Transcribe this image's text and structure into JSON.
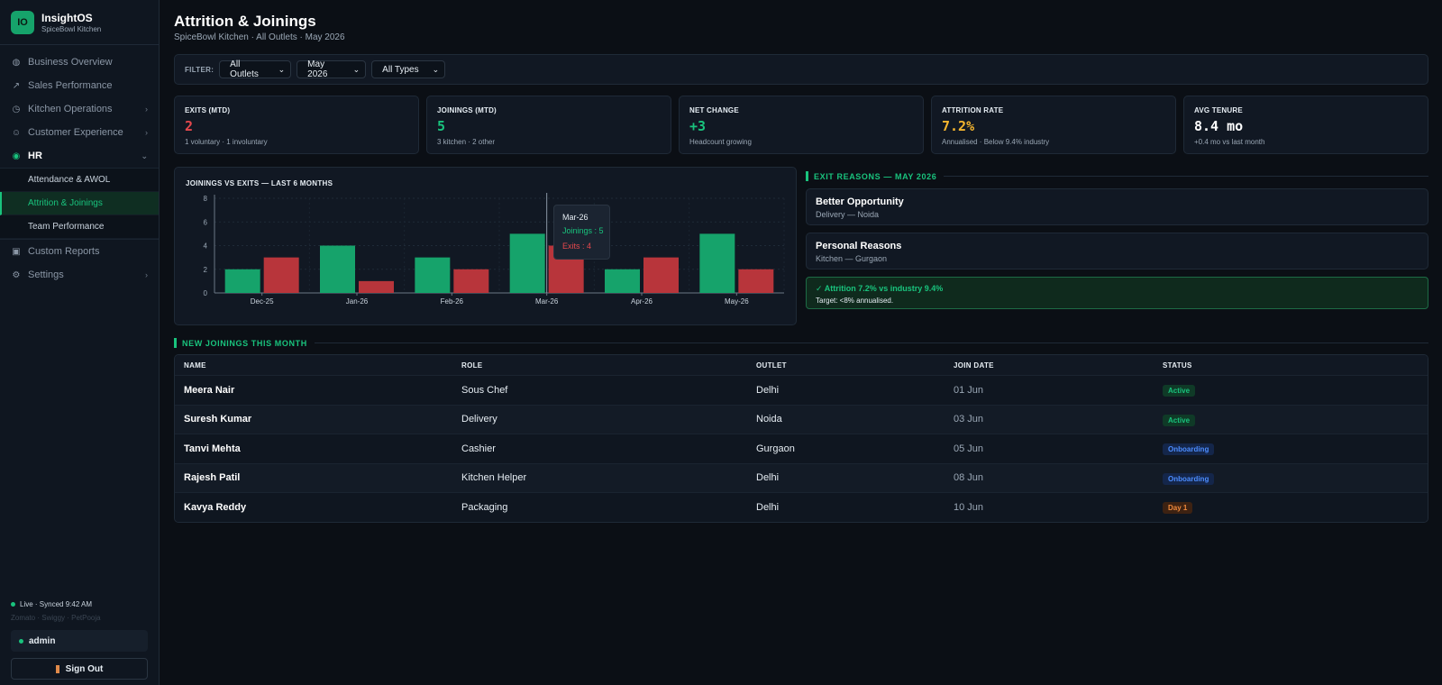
{
  "sidebar": {
    "brand_initials": "IO",
    "brand_name": "InsightOS",
    "brand_sub": "SpiceBowl Kitchen",
    "items": [
      {
        "label": "Business Overview",
        "icon": "globe-icon",
        "chevron": false
      },
      {
        "label": "Sales Performance",
        "icon": "trend-arrow-icon",
        "chevron": false
      },
      {
        "label": "Kitchen Operations",
        "icon": "clock-icon",
        "chevron": true
      },
      {
        "label": "Customer Experience",
        "icon": "smile-icon",
        "chevron": true
      },
      {
        "label": "HR",
        "icon": "hr-dot-icon",
        "chevron": true,
        "expanded": true
      },
      {
        "label": "Custom Reports",
        "icon": "report-icon",
        "chevron": false
      },
      {
        "label": "Settings",
        "icon": "gear-icon",
        "chevron": true
      }
    ],
    "hr_subitems": [
      {
        "label": "Attendance & AWOL"
      },
      {
        "label": "Attrition & Joinings",
        "active": true
      },
      {
        "label": "Team Performance"
      }
    ],
    "live_status": "Live · Synced 9:42 AM",
    "sources": "Zomato · Swiggy · PetPooja",
    "user": "admin",
    "sign_out": "Sign Out"
  },
  "header": {
    "title": "Attrition & Joinings",
    "subtitle": "SpiceBowl Kitchen · All Outlets · May 2026"
  },
  "filters": {
    "label": "FILTER:",
    "outlet": "All Outlets",
    "month": "May 2026",
    "type": "All Types"
  },
  "kpis": [
    {
      "label": "EXITS (MTD)",
      "value": "2",
      "sub": "1 voluntary · 1 involuntary",
      "color": "#e5484d"
    },
    {
      "label": "JOININGS (MTD)",
      "value": "5",
      "sub": "3 kitchen · 2 other",
      "color": "#19c37d"
    },
    {
      "label": "NET CHANGE",
      "value": "+3",
      "sub": "Headcount growing",
      "color": "#19c37d"
    },
    {
      "label": "ATTRITION RATE",
      "value": "7.2%",
      "sub": "Annualised · Below 9.4% industry",
      "color": "#f5b52e"
    },
    {
      "label": "AVG TENURE",
      "value": "8.4 mo",
      "sub": "+0.4 mo vs last month",
      "color": "#ffffff"
    }
  ],
  "chart_title": "JOININGS VS EXITS — LAST 6 MONTHS",
  "chart_data": {
    "type": "bar",
    "categories": [
      "Dec-25",
      "Jan-26",
      "Feb-26",
      "Mar-26",
      "Apr-26",
      "May-26"
    ],
    "series": [
      {
        "name": "Joinings",
        "values": [
          2,
          4,
          3,
          5,
          2,
          5
        ],
        "color": "#16a36b"
      },
      {
        "name": "Exits",
        "values": [
          3,
          1,
          2,
          4,
          3,
          2
        ],
        "color": "#b8353b"
      }
    ],
    "ylim": [
      0,
      8
    ],
    "yticks": [
      0,
      2,
      4,
      6,
      8
    ],
    "grid": true,
    "hover_category": "Mar-26"
  },
  "tooltip": {
    "title": "Mar-26",
    "joinings": "Joinings : 5",
    "exits": "Exits : 4"
  },
  "exit_reasons": {
    "heading": "EXIT REASONS — MAY 2026",
    "items": [
      {
        "title": "Better Opportunity",
        "sub": "Delivery — Noida"
      },
      {
        "title": "Personal Reasons",
        "sub": "Kitchen — Gurgaon"
      }
    ],
    "note_title": "✓ Attrition 7.2% vs industry 9.4%",
    "note_sub": "Target: <8% annualised."
  },
  "joinings": {
    "heading": "NEW JOININGS THIS MONTH",
    "columns": [
      "NAME",
      "ROLE",
      "OUTLET",
      "JOIN DATE",
      "STATUS"
    ],
    "rows": [
      {
        "name": "Meera Nair",
        "role": "Sous Chef",
        "outlet": "Delhi",
        "date": "01 Jun",
        "status": "Active",
        "kind": "active"
      },
      {
        "name": "Suresh Kumar",
        "role": "Delivery",
        "outlet": "Noida",
        "date": "03 Jun",
        "status": "Active",
        "kind": "active"
      },
      {
        "name": "Tanvi Mehta",
        "role": "Cashier",
        "outlet": "Gurgaon",
        "date": "05 Jun",
        "status": "Onboarding",
        "kind": "onboarding"
      },
      {
        "name": "Rajesh Patil",
        "role": "Kitchen Helper",
        "outlet": "Delhi",
        "date": "08 Jun",
        "status": "Onboarding",
        "kind": "onboarding"
      },
      {
        "name": "Kavya Reddy",
        "role": "Packaging",
        "outlet": "Delhi",
        "date": "10 Jun",
        "status": "Day 1",
        "kind": "day1"
      }
    ]
  }
}
